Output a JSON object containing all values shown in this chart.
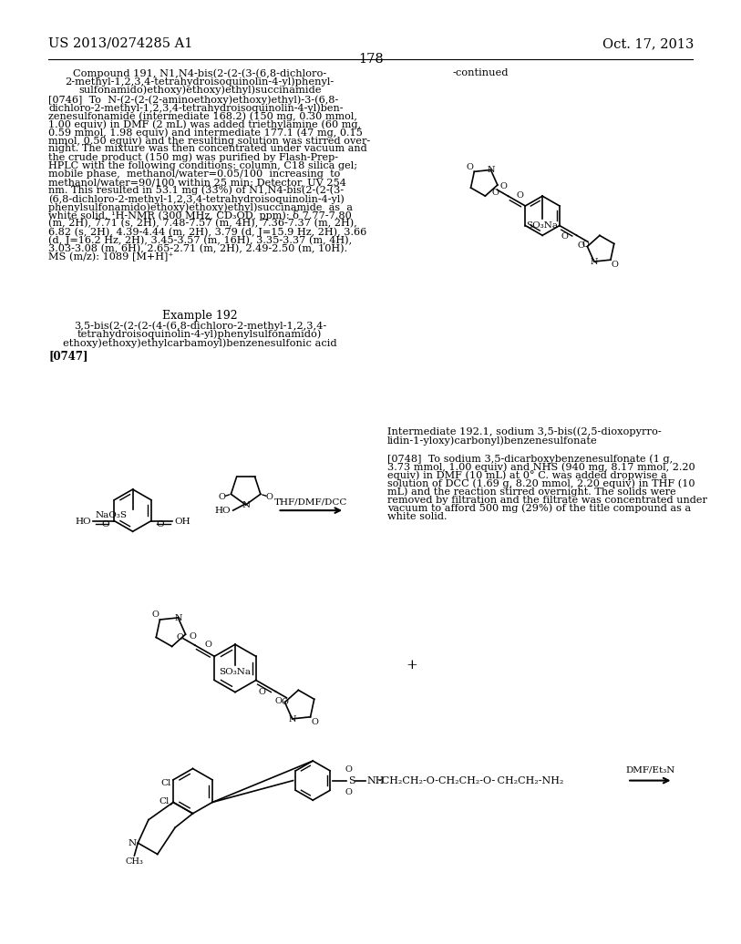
{
  "background_color": "#ffffff",
  "header_left": "US 2013/0274285 A1",
  "header_right": "Oct. 17, 2013",
  "page_number": "178",
  "para_0746_lines": [
    "[0746]  To  N-(2-(2-(2-aminoethoxy)ethoxy)ethyl)-3-(6,8-",
    "dichloro-2-methyl-1,2,3,4-tetrahydroisoquinolin-4-yl)ben-",
    "zenesulfonamide (intermediate 168.2) (150 mg, 0.30 mmol,",
    "1.00 equiv) in DMF (2 mL) was added triethylamine (60 mg,",
    "0.59 mmol, 1.98 equiv) and intermediate 177.1 (47 mg, 0.15",
    "mmol, 0.50 equiv) and the resulting solution was stirred over-",
    "night. The mixture was then concentrated under vacuum and",
    "the crude product (150 mg) was purified by Flash-Prep-",
    "HPLC with the following conditions: column, C18 silica gel;",
    "mobile phase,  methanol/water=0.05/100  increasing  to",
    "methanol/water=90/100 within 25 min; Detector, UV 254",
    "nm. This resulted in 53.1 mg (33%) of N1,N4-bis(2-(2-(3-",
    "(6,8-dichloro-2-methyl-1,2,3,4-tetrahydroisoquinolin-4-yl)",
    "phenylsulfonamido)ethoxy)ethoxy)ethyl)succinamide  as  a",
    "white solid. ¹H-NMR (300 MHz, CD₃OD, ppm): δ 7.77-7.80",
    "(m, 2H), 7.71 (s, 2H), 7.48-7.57 (m, 4H), 7.36-7.37 (m, 2H),",
    "6.82 (s, 2H), 4.39-4.44 (m, 2H), 3.79 (d, J=15.9 Hz, 2H), 3.66",
    "(d, J=16.2 Hz, 2H), 3.45-3.57 (m, 16H), 3.35-3.37 (m, 4H),",
    "3.03-3.08 (m, 6H), 2.65-2.71 (m, 2H), 2.49-2.50 (m, 10H).",
    "MS (m/z): 1089 [M+H]⁺"
  ],
  "left_title_lines": [
    "Compound 191, N1,N4-bis(2-(2-(3-(6,8-dichloro-",
    "2-methyl-1,2,3,4-tetrahydroisoquinolin-4-yl)phenyl-",
    "sulfonamido)ethoxy)ethoxy)ethyl)succinamide"
  ],
  "example192_title": "Example 192",
  "example192_lines": [
    "3,5-bis(2-(2-(2-(4-(6,8-dichloro-2-methyl-1,2,3,4-",
    "tetrahydroisoquinolin-4-yl)phenylsulfonamido)",
    "ethoxy)ethoxy)ethylcarbamoyl)benzenesulfonic acid"
  ],
  "intermediate_lines": [
    "Intermediate 192.1, sodium 3,5-bis((2,5-dioxopyrro-",
    "lidin-1-yloxy)carbonyl)benzenesulfonate"
  ],
  "para_0748_lines": [
    "[0748]  To sodium 3,5-dicarboxybenzenesulfonate (1 g,",
    "3.73 mmol, 1.00 equiv) and NHS (940 mg, 8.17 mmol, 2.20",
    "equiv) in DMF (10 mL) at 0° C. was added dropwise a",
    "solution of DCC (1.69 g, 8.20 mmol, 2.20 equiv) in THF (10",
    "mL) and the reaction stirred overnight. The solids were",
    "removed by filtration and the filtrate was concentrated under",
    "vacuum to afford 500 mg (29%) of the title compound as a",
    "white solid."
  ]
}
